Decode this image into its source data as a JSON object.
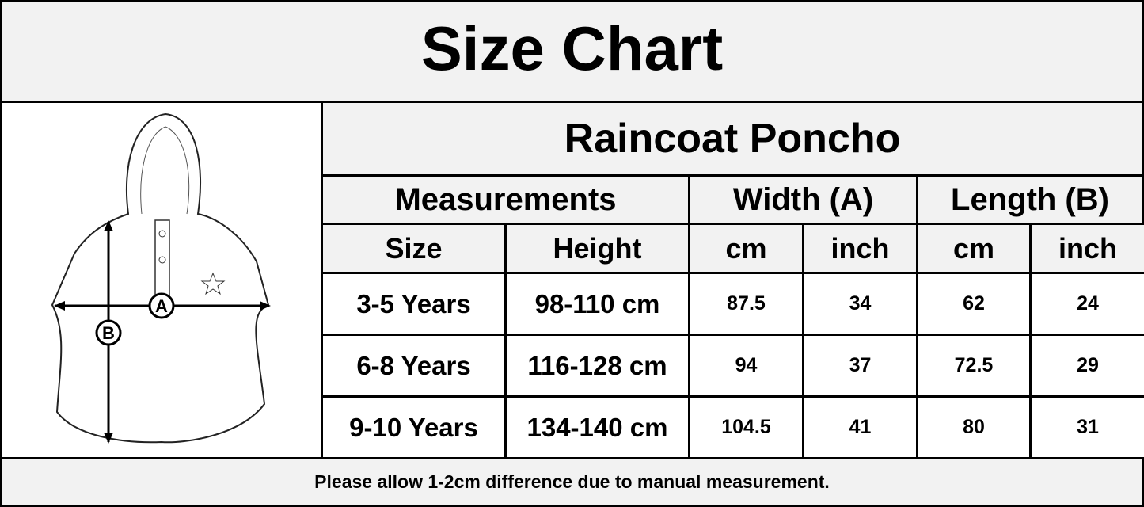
{
  "title": "Size Chart",
  "product": "Raincoat Poncho",
  "illustration": {
    "label_a": "A",
    "label_b": "B"
  },
  "header": {
    "measurements": "Measurements",
    "width": "Width (A)",
    "length": "Length (B)"
  },
  "subheader": [
    "Size",
    "Height",
    "cm",
    "inch",
    "cm",
    "inch"
  ],
  "rows": [
    [
      "3-5 Years",
      "98-110 cm",
      "87.5",
      "34",
      "62",
      "24"
    ],
    [
      "6-8 Years",
      "116-128 cm",
      "94",
      "37",
      "72.5",
      "29"
    ],
    [
      "9-10 Years",
      "134-140 cm",
      "104.5",
      "41",
      "80",
      "31"
    ]
  ],
  "footer": "Please allow 1-2cm difference due to manual measurement."
}
